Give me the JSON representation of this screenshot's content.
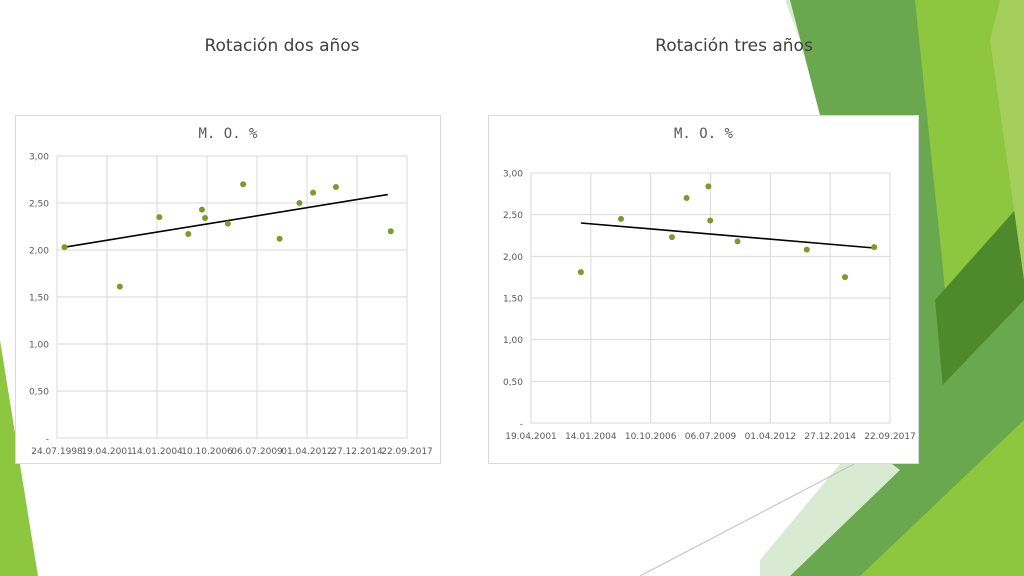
{
  "slide": {
    "title_left": "Rotación dos años",
    "title_right": "Rotación tres años"
  },
  "colors": {
    "marker": "#7a9a2a",
    "trendline": "#000000",
    "grid": "#d9d9d9",
    "axis_text": "#595959",
    "deco_green_light": "#8dc63f",
    "deco_green_mid": "#6aa84f",
    "deco_green_dark": "#4e8a2b"
  },
  "chart_data": [
    {
      "type": "scatter",
      "title": "M. O. %",
      "x_ticks": [
        "24.07.1998",
        "19.04.2001",
        "14.01.2004",
        "10.10.2006",
        "06.07.2009",
        "01.04.2012",
        "27.12.2014",
        "22.09.2017"
      ],
      "y_ticks": [
        "-",
        "0,50",
        "1,00",
        "1,50",
        "2,00",
        "2,50",
        "3,00"
      ],
      "ylim": [
        0,
        3
      ],
      "grid": true,
      "legend": "none",
      "points": [
        {
          "x": "1998-12-20",
          "y": 2.03
        },
        {
          "x": "2002-01-01",
          "y": 1.61
        },
        {
          "x": "2004-03-01",
          "y": 2.35
        },
        {
          "x": "2005-10-01",
          "y": 2.17
        },
        {
          "x": "2006-07-01",
          "y": 2.43
        },
        {
          "x": "2006-09-01",
          "y": 2.34
        },
        {
          "x": "2007-12-01",
          "y": 2.28
        },
        {
          "x": "2008-10-01",
          "y": 2.7
        },
        {
          "x": "2010-10-01",
          "y": 2.12
        },
        {
          "x": "2011-11-01",
          "y": 2.5
        },
        {
          "x": "2012-08-01",
          "y": 2.61
        },
        {
          "x": "2013-11-01",
          "y": 2.67
        },
        {
          "x": "2016-11-01",
          "y": 2.2
        }
      ],
      "trendline": [
        {
          "x": "1998-12-20",
          "y": 2.03
        },
        {
          "x": "2016-09-01",
          "y": 2.59
        }
      ]
    },
    {
      "type": "scatter",
      "title": "M. O. %",
      "x_ticks": [
        "19.04.2001",
        "14.01.2004",
        "10.10.2006",
        "06.07.2009",
        "01.04.2012",
        "27.12.2014",
        "22.09.2017"
      ],
      "y_ticks": [
        "-",
        "0,50",
        "1,00",
        "1,50",
        "2,00",
        "2,50",
        "3,00"
      ],
      "ylim": [
        0,
        3
      ],
      "grid": true,
      "legend": "none",
      "points": [
        {
          "x": "2003-08-01",
          "y": 1.81
        },
        {
          "x": "2005-06-01",
          "y": 2.45
        },
        {
          "x": "2007-10-01",
          "y": 2.23
        },
        {
          "x": "2008-06-01",
          "y": 2.7
        },
        {
          "x": "2009-06-01",
          "y": 2.84
        },
        {
          "x": "2009-07-01",
          "y": 2.43
        },
        {
          "x": "2010-10-01",
          "y": 2.18
        },
        {
          "x": "2013-12-01",
          "y": 2.08
        },
        {
          "x": "2015-09-01",
          "y": 1.75
        },
        {
          "x": "2017-01-01",
          "y": 2.11
        }
      ],
      "trendline": [
        {
          "x": "2003-08-01",
          "y": 2.4
        },
        {
          "x": "2017-01-01",
          "y": 2.1
        }
      ]
    }
  ]
}
